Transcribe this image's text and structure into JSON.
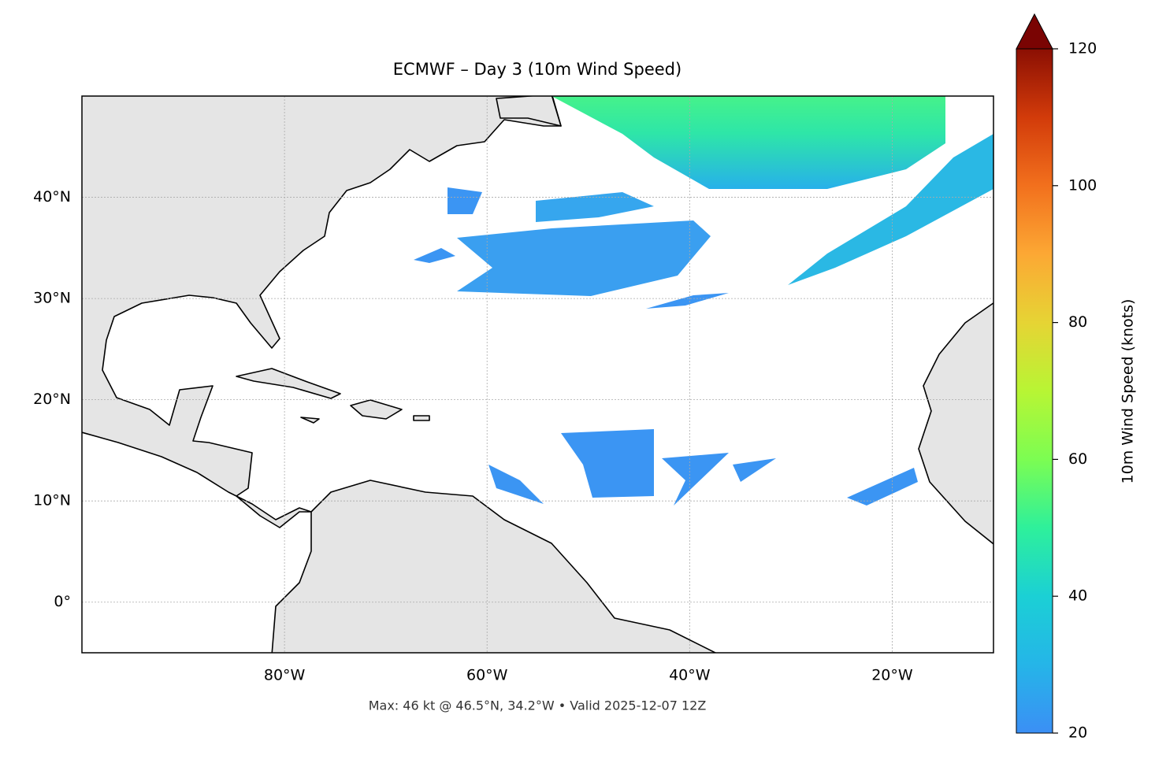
{
  "chart_data": {
    "type": "map",
    "title": "ECMWF – Day 3 (10m Wind Speed)",
    "footnote": "Max: 46 kt @ 46.5°N, 34.2°W • Valid 2025-12-07 12Z",
    "xlim": [
      -100,
      -10
    ],
    "ylim": [
      -5,
      50
    ],
    "xticks": [
      {
        "value": -80,
        "label": "80°W"
      },
      {
        "value": -60,
        "label": "60°W"
      },
      {
        "value": -40,
        "label": "40°W"
      },
      {
        "value": -20,
        "label": "20°W"
      }
    ],
    "yticks": [
      {
        "value": 0,
        "label": "0°"
      },
      {
        "value": 10,
        "label": "10°N"
      },
      {
        "value": 20,
        "label": "20°N"
      },
      {
        "value": 30,
        "label": "30°N"
      },
      {
        "value": 40,
        "label": "40°N"
      }
    ],
    "grid": true,
    "colorbar": {
      "label": "10m Wind Speed (knots)",
      "lim": [
        20,
        120
      ],
      "ticks": [
        20,
        40,
        60,
        80,
        100,
        120
      ]
    }
  }
}
